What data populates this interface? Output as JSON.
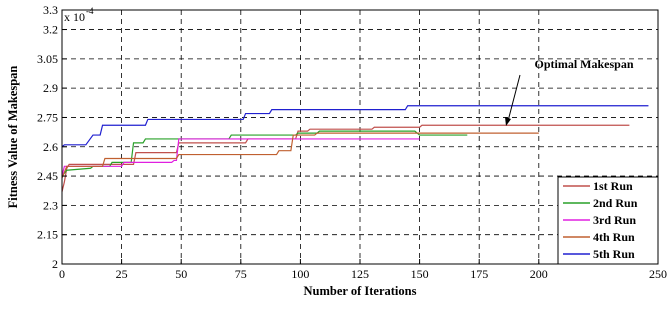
{
  "chart_data": {
    "type": "line",
    "title": "",
    "xlabel": "Number of Iterations",
    "ylabel": "Fitness Value of Makespan",
    "y_multiplier_label": "x 10",
    "y_multiplier_exponent": "-4",
    "xlim": [
      0,
      250
    ],
    "ylim": [
      2.0,
      3.3
    ],
    "x_ticks": [
      0,
      25,
      50,
      75,
      100,
      125,
      150,
      175,
      200,
      250
    ],
    "x_tick_labels": [
      "0",
      "25",
      "50",
      "75",
      "100",
      "125",
      "150",
      "175",
      "200",
      "250"
    ],
    "y_ticks": [
      2.0,
      2.15,
      2.3,
      2.45,
      2.6,
      2.75,
      2.9,
      3.05,
      3.2,
      3.3
    ],
    "y_tick_labels": [
      "2",
      "2.15",
      "2.3",
      "2.45",
      "2.6",
      "2.75",
      "2.9",
      "3.05",
      "3.2",
      "3.3"
    ],
    "grid": true,
    "legend_position": "bottom-right",
    "annotation": {
      "text": "Optimal Makespan",
      "x": 186,
      "y": 2.81
    },
    "series": [
      {
        "name": "1st Run",
        "color": "#c0504d",
        "points": [
          [
            0,
            2.37
          ],
          [
            1,
            2.42
          ],
          [
            2,
            2.49
          ],
          [
            3,
            2.51
          ],
          [
            30,
            2.51
          ],
          [
            31,
            2.57
          ],
          [
            48,
            2.57
          ],
          [
            49,
            2.62
          ],
          [
            77,
            2.62
          ],
          [
            78,
            2.64
          ],
          [
            98,
            2.64
          ],
          [
            99,
            2.68
          ],
          [
            103,
            2.68
          ],
          [
            104,
            2.69
          ],
          [
            130,
            2.69
          ],
          [
            131,
            2.7
          ],
          [
            150,
            2.7
          ],
          [
            151,
            2.71
          ],
          [
            238,
            2.71
          ]
        ]
      },
      {
        "name": "2nd Run",
        "color": "#28a028",
        "points": [
          [
            0,
            2.45
          ],
          [
            2,
            2.48
          ],
          [
            12,
            2.49
          ],
          [
            13,
            2.5
          ],
          [
            20,
            2.5
          ],
          [
            21,
            2.52
          ],
          [
            29,
            2.52
          ],
          [
            30,
            2.62
          ],
          [
            34,
            2.62
          ],
          [
            35,
            2.64
          ],
          [
            70,
            2.64
          ],
          [
            71,
            2.66
          ],
          [
            98,
            2.66
          ],
          [
            99,
            2.67
          ],
          [
            107,
            2.67
          ],
          [
            108,
            2.68
          ],
          [
            148,
            2.68
          ],
          [
            150,
            2.66
          ],
          [
            170,
            2.66
          ]
        ]
      },
      {
        "name": "3rd Run",
        "color": "#e020e0",
        "points": [
          [
            0,
            2.45
          ],
          [
            1,
            2.5
          ],
          [
            25,
            2.5
          ],
          [
            26,
            2.52
          ],
          [
            46,
            2.52
          ],
          [
            47,
            2.53
          ],
          [
            48,
            2.53
          ],
          [
            49,
            2.64
          ],
          [
            150,
            2.64
          ]
        ]
      },
      {
        "name": "4th Run",
        "color": "#c06030",
        "points": [
          [
            0,
            2.44
          ],
          [
            1,
            2.47
          ],
          [
            2,
            2.5
          ],
          [
            17,
            2.5
          ],
          [
            18,
            2.54
          ],
          [
            48,
            2.54
          ],
          [
            49,
            2.56
          ],
          [
            90,
            2.56
          ],
          [
            91,
            2.58
          ],
          [
            96,
            2.58
          ],
          [
            97,
            2.66
          ],
          [
            106,
            2.66
          ],
          [
            107,
            2.67
          ],
          [
            200,
            2.67
          ]
        ]
      },
      {
        "name": "5th Run",
        "color": "#2020d0",
        "points": [
          [
            0,
            2.6
          ],
          [
            1,
            2.61
          ],
          [
            10,
            2.61
          ],
          [
            13,
            2.66
          ],
          [
            16,
            2.66
          ],
          [
            17,
            2.71
          ],
          [
            35,
            2.71
          ],
          [
            36,
            2.74
          ],
          [
            76,
            2.74
          ],
          [
            77,
            2.77
          ],
          [
            87,
            2.77
          ],
          [
            88,
            2.79
          ],
          [
            144,
            2.79
          ],
          [
            145,
            2.81
          ],
          [
            246,
            2.81
          ]
        ]
      }
    ]
  }
}
